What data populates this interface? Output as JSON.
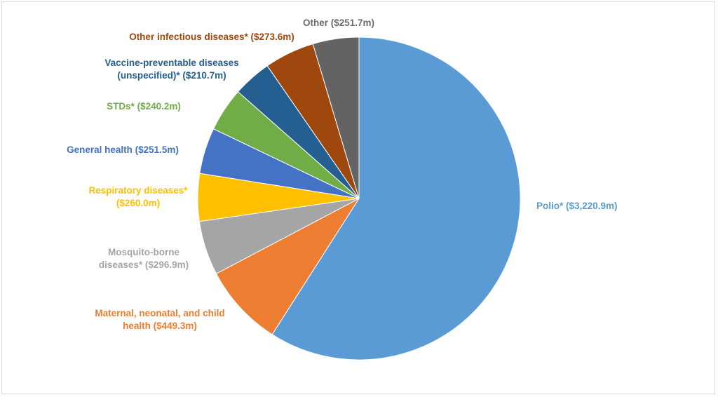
{
  "chart_data": {
    "type": "pie",
    "title": "",
    "start": "12 o'clock",
    "direction": "clockwise",
    "slices": [
      {
        "key": "polio",
        "name": "Polio*",
        "value": 3220.9,
        "value_label": "($3,220.9m)",
        "color": "#5b9bd5",
        "label_lines": [
          "Polio* ($3,220.9m)"
        ]
      },
      {
        "key": "maternal",
        "name": "Maternal, neonatal, and child health",
        "value": 449.3,
        "value_label": "($449.3m)",
        "color": "#ed7d31",
        "label_lines": [
          "Maternal, neonatal, and child",
          "health ($449.3m)"
        ]
      },
      {
        "key": "mosquito",
        "name": "Mosquito-borne diseases*",
        "value": 296.9,
        "value_label": "($296.9m)",
        "color": "#a5a5a5",
        "label_lines": [
          "Mosquito-borne",
          "diseases* ($296.9m)"
        ]
      },
      {
        "key": "respiratory",
        "name": "Respiratory diseases*",
        "value": 260.0,
        "value_label": "($260.0m)",
        "color": "#ffc000",
        "label_lines": [
          "Respiratory diseases*",
          "($260.0m)"
        ]
      },
      {
        "key": "general",
        "name": "General health",
        "value": 251.5,
        "value_label": "($251.5m)",
        "color": "#4472c4",
        "label_lines": [
          "General health ($251.5m)"
        ]
      },
      {
        "key": "stds",
        "name": "STDs*",
        "value": 240.2,
        "value_label": "($240.2m)",
        "color": "#70ad47",
        "label_lines": [
          "STDs* ($240.2m)"
        ]
      },
      {
        "key": "vaccine",
        "name": "Vaccine-preventable diseases (unspecified)*",
        "value": 210.7,
        "value_label": "($210.7m)",
        "color": "#255e91",
        "label_lines": [
          "Vaccine-preventable diseases",
          "(unspecified)* ($210.7m)"
        ]
      },
      {
        "key": "infectious",
        "name": "Other infectious diseases*",
        "value": 273.6,
        "value_label": "($273.6m)",
        "color": "#9e480e",
        "label_lines": [
          "Other infectious diseases* ($273.6m)"
        ]
      },
      {
        "key": "other",
        "name": "Other",
        "value": 251.7,
        "value_label": "($251.7m)",
        "color": "#636363",
        "label_lines": [
          "Other ($251.7m)"
        ]
      }
    ]
  }
}
